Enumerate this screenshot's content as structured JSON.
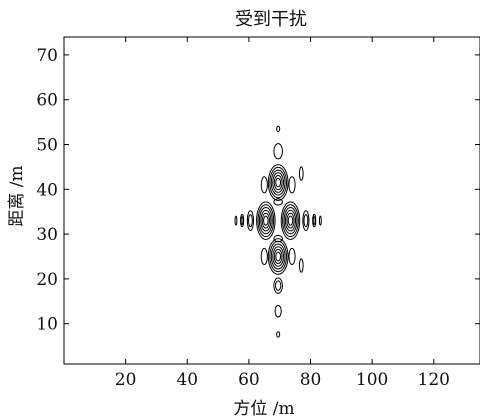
{
  "chart_data": {
    "type": "contour",
    "title": "受到干扰",
    "xlabel": "方位 /m",
    "ylabel": "距离 /m",
    "xlim": [
      0,
      135
    ],
    "ylim": [
      1,
      74
    ],
    "xticks": [
      20,
      40,
      60,
      80,
      100,
      120
    ],
    "yticks": [
      10,
      20,
      30,
      40,
      50,
      60,
      70
    ],
    "grid": false,
    "legend": "none",
    "line_color": "#000000",
    "blobs": [
      {
        "x": 69.5,
        "y": 41.5,
        "rx": 3.2,
        "ry": 4.0,
        "levels": 6
      },
      {
        "x": 69.5,
        "y": 25.0,
        "rx": 3.2,
        "ry": 4.0,
        "levels": 6
      },
      {
        "x": 65.5,
        "y": 33.0,
        "rx": 3.0,
        "ry": 4.2,
        "levels": 6
      },
      {
        "x": 73.5,
        "y": 33.0,
        "rx": 3.0,
        "ry": 4.2,
        "levels": 6
      },
      {
        "x": 69.5,
        "y": 48.5,
        "rx": 1.4,
        "ry": 1.7,
        "levels": 1
      },
      {
        "x": 69.5,
        "y": 53.5,
        "rx": 0.5,
        "ry": 0.6,
        "levels": 1
      },
      {
        "x": 69.5,
        "y": 18.5,
        "rx": 1.4,
        "ry": 1.7,
        "levels": 2
      },
      {
        "x": 69.5,
        "y": 12.8,
        "rx": 1.0,
        "ry": 1.3,
        "levels": 1
      },
      {
        "x": 69.5,
        "y": 7.6,
        "rx": 0.5,
        "ry": 0.6,
        "levels": 1
      },
      {
        "x": 65.0,
        "y": 41.0,
        "rx": 1.0,
        "ry": 1.8,
        "levels": 1
      },
      {
        "x": 74.0,
        "y": 41.0,
        "rx": 1.0,
        "ry": 1.8,
        "levels": 1
      },
      {
        "x": 65.0,
        "y": 25.0,
        "rx": 1.0,
        "ry": 1.8,
        "levels": 1
      },
      {
        "x": 74.0,
        "y": 25.0,
        "rx": 1.0,
        "ry": 1.8,
        "levels": 1
      },
      {
        "x": 60.5,
        "y": 33.0,
        "rx": 1.0,
        "ry": 2.2,
        "levels": 2
      },
      {
        "x": 78.5,
        "y": 33.0,
        "rx": 1.0,
        "ry": 2.2,
        "levels": 2
      },
      {
        "x": 57.8,
        "y": 33.0,
        "rx": 0.5,
        "ry": 1.4,
        "levels": 2
      },
      {
        "x": 81.2,
        "y": 33.0,
        "rx": 0.5,
        "ry": 1.4,
        "levels": 2
      },
      {
        "x": 55.8,
        "y": 33.0,
        "rx": 0.3,
        "ry": 1.0,
        "levels": 1
      },
      {
        "x": 83.2,
        "y": 33.0,
        "rx": 0.3,
        "ry": 1.0,
        "levels": 1
      },
      {
        "x": 69.5,
        "y": 37.2,
        "rx": 1.4,
        "ry": 0.7,
        "levels": 1
      },
      {
        "x": 69.5,
        "y": 29.0,
        "rx": 1.4,
        "ry": 0.7,
        "levels": 1
      },
      {
        "x": 77.0,
        "y": 43.5,
        "rx": 0.6,
        "ry": 1.5,
        "levels": 1
      },
      {
        "x": 77.0,
        "y": 23.0,
        "rx": 0.6,
        "ry": 1.5,
        "levels": 1
      }
    ]
  }
}
